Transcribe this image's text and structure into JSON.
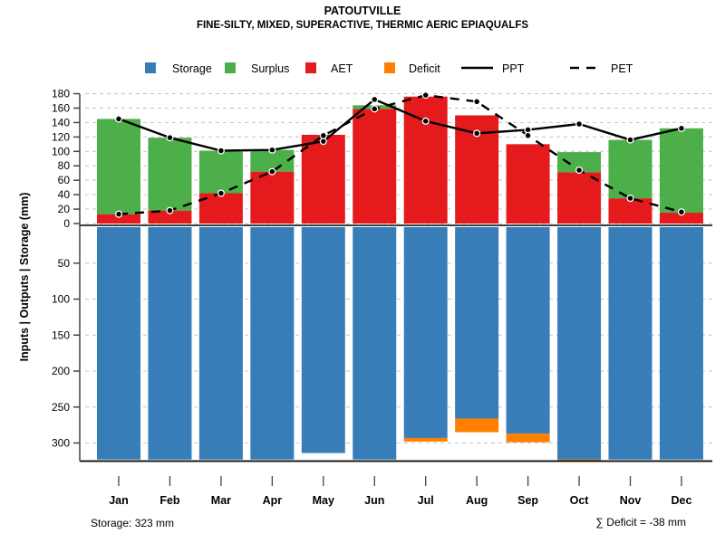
{
  "header": {
    "title": "PATOUTVILLE",
    "subtitle": "FINE-SILTY, MIXED, SUPERACTIVE, THERMIC AERIC EPIAQUALFS"
  },
  "footer": {
    "storage_caption": "Storage: 323 mm",
    "deficit_caption": "∑ Deficit = -38 mm"
  },
  "colors": {
    "storage": "#377EB8",
    "surplus": "#4DAF4A",
    "aet": "#E41A1C",
    "deficit": "#FF7F00",
    "line": "#000000",
    "grid": "#C4C4C4"
  },
  "chart_data": {
    "type": "bar",
    "title": "PATOUTVILLE",
    "subtitle": "FINE-SILTY, MIXED, SUPERACTIVE, THERMIC AERIC EPIAQUALFS",
    "y_label": "Inputs | Outputs | Storage   (mm)",
    "categories": [
      "Jan",
      "Feb",
      "Mar",
      "Apr",
      "May",
      "Jun",
      "Jul",
      "Aug",
      "Sep",
      "Oct",
      "Nov",
      "Dec"
    ],
    "upper_axis": {
      "min": 0,
      "max": 180,
      "step": 20,
      "direction": "up",
      "grid": "dashed"
    },
    "lower_axis": {
      "min": 0,
      "max": 300,
      "step": 50,
      "direction": "down",
      "grid": "dashed"
    },
    "legend_position": "top",
    "series": [
      {
        "name": "Storage",
        "type": "bar",
        "axis": "lower",
        "color": "#377EB8",
        "values": [
          323,
          323,
          323,
          323,
          314,
          323,
          293,
          266,
          287,
          323,
          323,
          323
        ]
      },
      {
        "name": "Surplus",
        "type": "bar",
        "axis": "upper",
        "stacked_on": "AET",
        "color": "#4DAF4A",
        "values": [
          132,
          101,
          59,
          30,
          0,
          5,
          0,
          0,
          0,
          28,
          81,
          117
        ]
      },
      {
        "name": "AET",
        "type": "bar",
        "axis": "upper",
        "color": "#E41A1C",
        "values": [
          13,
          18,
          42,
          72,
          123,
          159,
          176,
          150,
          110,
          71,
          35,
          15
        ]
      },
      {
        "name": "Deficit",
        "type": "bar",
        "axis": "lower",
        "stacked_below": "Storage",
        "color": "#FF7F00",
        "values": [
          0,
          0,
          0,
          0,
          0,
          0,
          5,
          19,
          12,
          2,
          0,
          0
        ]
      },
      {
        "name": "PPT",
        "type": "line",
        "style": "solid",
        "axis": "upper",
        "color": "#000000",
        "values": [
          145,
          119,
          101,
          102,
          114,
          172,
          142,
          125,
          130,
          138,
          116,
          132
        ]
      },
      {
        "name": "PET",
        "type": "line",
        "style": "dashed",
        "axis": "upper",
        "color": "#000000",
        "values": [
          13,
          18,
          42,
          72,
          122,
          159,
          178,
          169,
          122,
          74,
          35,
          16
        ]
      }
    ],
    "annotations": [
      "Storage: 323 mm",
      "∑ Deficit = -38 mm"
    ]
  }
}
